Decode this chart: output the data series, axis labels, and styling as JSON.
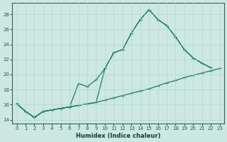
{
  "title": "",
  "xlabel": "Humidex (Indice chaleur)",
  "ylabel": "",
  "bg_color": "#cde8e2",
  "grid_color": "#b0d8d0",
  "line_color": "#1e7a68",
  "xlim": [
    -0.5,
    23.5
  ],
  "ylim": [
    13.5,
    29.5
  ],
  "xticks": [
    0,
    1,
    2,
    3,
    4,
    5,
    6,
    7,
    8,
    9,
    10,
    11,
    12,
    13,
    14,
    15,
    16,
    17,
    18,
    19,
    20,
    21,
    22,
    23
  ],
  "yticks": [
    14,
    16,
    18,
    20,
    22,
    24,
    26,
    28
  ],
  "line1_x": [
    0,
    1,
    2,
    3,
    4,
    5,
    6,
    7,
    8,
    9,
    10,
    11,
    12,
    13,
    14,
    15,
    16,
    17,
    18,
    19,
    20,
    21,
    22,
    23
  ],
  "line1_y": [
    16.1,
    15.1,
    14.3,
    15.1,
    15.3,
    15.5,
    15.7,
    15.9,
    16.1,
    16.3,
    16.6,
    16.9,
    17.2,
    17.5,
    17.8,
    18.1,
    18.5,
    18.9,
    19.2,
    19.6,
    19.9,
    20.2,
    20.5,
    20.8
  ],
  "line2_x": [
    0,
    1,
    2,
    3,
    4,
    5,
    6,
    7,
    8,
    9,
    10,
    11,
    12,
    13,
    14,
    15,
    16,
    17,
    18,
    19,
    20,
    21,
    22,
    23
  ],
  "line2_y": [
    16.1,
    15.1,
    14.3,
    15.1,
    15.3,
    15.5,
    15.7,
    15.9,
    16.1,
    16.3,
    20.8,
    22.9,
    23.3,
    25.5,
    27.3,
    28.6,
    27.3,
    26.5,
    25.0,
    23.3,
    22.2,
    21.5,
    20.9,
    null
  ],
  "line3_x": [
    0,
    1,
    2,
    3,
    4,
    5,
    6,
    7,
    8,
    9,
    10,
    11,
    12,
    13,
    14,
    15,
    16,
    17,
    18,
    19,
    20,
    21,
    22,
    23
  ],
  "line3_y": [
    16.1,
    15.1,
    14.3,
    15.1,
    15.3,
    15.5,
    15.7,
    18.8,
    18.4,
    19.3,
    20.8,
    22.9,
    23.3,
    25.5,
    27.3,
    28.6,
    27.3,
    26.5,
    25.0,
    23.3,
    22.2,
    21.5,
    20.9,
    null
  ],
  "marker": "+",
  "markersize": 3.5,
  "linewidth": 0.9
}
